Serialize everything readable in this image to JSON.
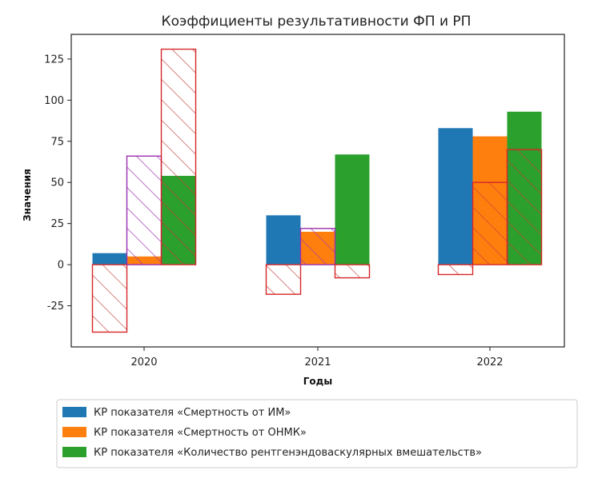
{
  "chart_data": {
    "type": "bar",
    "title": "Коэффициенты результативности ФП и РП",
    "xlabel": "Годы",
    "ylabel": "Значения",
    "categories": [
      "2020",
      "2021",
      "2022"
    ],
    "ylim": [
      -50,
      140
    ],
    "yticks": [
      -25,
      0,
      25,
      50,
      75,
      100,
      125
    ],
    "grid": false,
    "legend_position": "bottom",
    "series": [
      {
        "name": "КР показателя «Смертность от ИМ»",
        "color": "#1f77b4",
        "values": [
          7,
          30,
          83
        ]
      },
      {
        "name": "КР показателя «Смертность от ОНМК»",
        "color": "#ff7f0e",
        "values": [
          5,
          20,
          78
        ]
      },
      {
        "name": "КР показателя «Количество рентгенэндоваскулярных вмешательств»",
        "color": "#2ca02c",
        "values": [
          54,
          67,
          93
        ]
      }
    ],
    "hatched_overlay": {
      "style": "hatched, unfilled",
      "values": [
        [
          -41,
          -18,
          -6
        ],
        [
          66,
          22,
          50
        ],
        [
          131,
          -8,
          70
        ]
      ],
      "edge_colors": [
        [
          "#d62728",
          "#d62728",
          "#d62728"
        ],
        [
          "#9b30b0",
          "#9b30b0",
          "#d62728"
        ],
        [
          "#d62728",
          "#d62728",
          "#d62728"
        ]
      ]
    }
  }
}
